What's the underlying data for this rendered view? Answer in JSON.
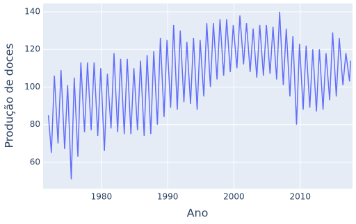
{
  "chart_data": {
    "type": "line",
    "x_label": "Ano",
    "y_label": "Produção de doces",
    "x": [
      1972,
      1972.45,
      1972.9,
      1973.45,
      1973.9,
      1974.45,
      1974.9,
      1975.45,
      1975.9,
      1976.45,
      1976.9,
      1977.45,
      1977.9,
      1978.45,
      1978.9,
      1979.45,
      1979.9,
      1980.45,
      1980.9,
      1981.45,
      1981.9,
      1982.45,
      1982.9,
      1983.45,
      1983.9,
      1984.45,
      1984.9,
      1985.45,
      1985.9,
      1986.45,
      1986.9,
      1987.45,
      1987.9,
      1988.45,
      1988.9,
      1989.45,
      1989.9,
      1990.45,
      1990.9,
      1991.45,
      1991.9,
      1992.45,
      1992.9,
      1993.45,
      1993.9,
      1994.45,
      1994.9,
      1995.45,
      1995.9,
      1996.45,
      1996.9,
      1997.45,
      1997.9,
      1998.45,
      1998.9,
      1999.45,
      1999.9,
      2000.45,
      2000.9,
      2001.45,
      2001.9,
      2002.45,
      2002.9,
      2003.45,
      2003.9,
      2004.45,
      2004.9,
      2005.45,
      2005.9,
      2006.45,
      2006.9,
      2007.45,
      2007.9,
      2008.45,
      2008.9,
      2009.45,
      2009.9,
      2010.45,
      2010.9,
      2011.45,
      2011.9,
      2012.45,
      2012.9,
      2013.45,
      2013.9,
      2014.45,
      2014.9,
      2015.45,
      2015.9,
      2016.45,
      2016.9,
      2017.45,
      2017.6
    ],
    "series": [
      {
        "color": "#636efa",
        "values": [
          85,
          65,
          106,
          70,
          109,
          67,
          101,
          51,
          105,
          63,
          113,
          76,
          113,
          77,
          113,
          74,
          110,
          66,
          107,
          78,
          118,
          76,
          115,
          75,
          115,
          75,
          110,
          77,
          114,
          74,
          117,
          75,
          119,
          80,
          126,
          84,
          125,
          89,
          133,
          88,
          130,
          92,
          124,
          91,
          126,
          88,
          125,
          95,
          134,
          100,
          134,
          104,
          136,
          106,
          136,
          108,
          133,
          110,
          138,
          112,
          134,
          108,
          131,
          105,
          133,
          106,
          133,
          107,
          132,
          104,
          140,
          101,
          131,
          95,
          127,
          80,
          123,
          88,
          122,
          89,
          120,
          87,
          120,
          88,
          118,
          93,
          129,
          95,
          126,
          101,
          118,
          103,
          114
        ]
      }
    ],
    "xlim": [
      1971.2,
      2017.9
    ],
    "xticks": [
      1980,
      1990,
      2000,
      2010
    ],
    "ylim": [
      46,
      144.4
    ],
    "yticks": [
      60,
      80,
      100,
      120,
      140
    ],
    "grid": true
  }
}
